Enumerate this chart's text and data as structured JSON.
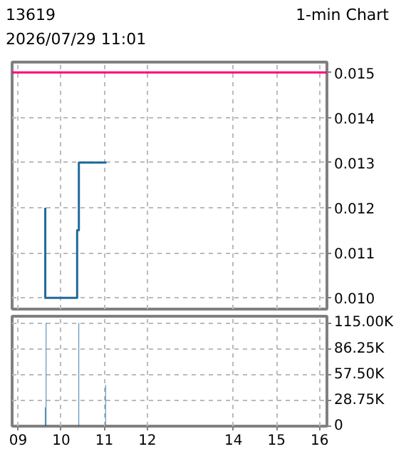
{
  "chart_data": [
    {
      "type": "line",
      "title": "13619",
      "subtitle": "2026/07/29 11:01",
      "annotations": [
        "1-min Chart"
      ],
      "x": [
        9.63,
        9.63,
        10.37,
        10.37,
        10.41,
        10.41,
        11.05
      ],
      "series": [
        {
          "color": "#1f6a9a",
          "values": [
            0.012,
            0.01,
            0.01,
            0.0115,
            0.0115,
            0.013,
            0.013
          ]
        }
      ],
      "xlim": [
        8.86,
        16.17
      ],
      "xticks": [
        9,
        10,
        11,
        12,
        14,
        15,
        16
      ],
      "ylim": [
        0.00975,
        0.01523
      ],
      "yticks": [
        {
          "value": 0.01,
          "label": "0.010"
        },
        0.011,
        0.012,
        0.013,
        0.014,
        0.015
      ],
      "ref_lines": [
        {
          "axis": "y",
          "value": 0.015,
          "color": "#ff0080"
        }
      ],
      "grid": true,
      "tick_labels": "y"
    },
    {
      "type": "bar",
      "x": [
        9.63,
        9.65,
        10.41,
        11.03
      ],
      "series": [
        {
          "color": "#1a6aa0",
          "values": [
            21000,
            115000,
            115000,
            46000
          ]
        }
      ],
      "xlim": [
        8.86,
        16.17
      ],
      "xticks": [
        {
          "value": 9,
          "label": "09"
        },
        10,
        11,
        12,
        14,
        15,
        16
      ],
      "ylim": [
        0,
        122500
      ],
      "yticks": [
        0,
        {
          "value": 28750,
          "label": "28.75K"
        },
        {
          "value": 57500,
          "label": "57.50K"
        },
        {
          "value": 86250,
          "label": "86.25K"
        },
        {
          "value": 115000,
          "label": "115.00K"
        }
      ],
      "grid": true
    }
  ]
}
